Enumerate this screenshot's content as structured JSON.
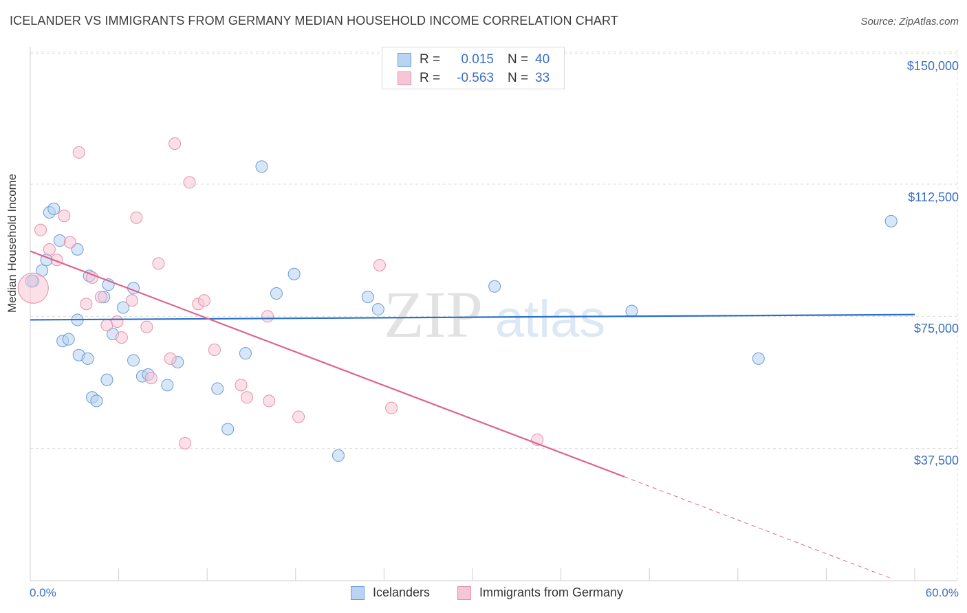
{
  "header": {
    "title": "ICELANDER VS IMMIGRANTS FROM GERMANY MEDIAN HOUSEHOLD INCOME CORRELATION CHART",
    "source": "Source: ZipAtlas.com"
  },
  "colors": {
    "blue_fill": "#b8d3f3",
    "blue_stroke": "#6b9bd8",
    "blue_line": "#2a6fcb",
    "pink_fill": "#f7c6d5",
    "pink_stroke": "#e690ab",
    "pink_line": "#e0628e",
    "grid": "#dcdcdc",
    "tick_label": "#3a6fc4"
  },
  "stats_legend": {
    "rows": [
      {
        "r_label": "R =",
        "r_value": "0.015",
        "n_label": "N =",
        "n_value": "40"
      },
      {
        "r_label": "R =",
        "r_value": "-0.563",
        "n_label": "N =",
        "n_value": "33"
      }
    ]
  },
  "watermark": {
    "zip": "ZIP",
    "atlas": "atlas"
  },
  "chart_data": {
    "type": "scatter",
    "title": "ICELANDER VS IMMIGRANTS FROM GERMANY MEDIAN HOUSEHOLD INCOME CORRELATION CHART",
    "xlabel": "",
    "ylabel": "Median Household Income",
    "xlim": [
      0,
      60
    ],
    "ylim": [
      0,
      155000
    ],
    "x_tick_labels": [
      "0.0%",
      "60.0%"
    ],
    "y_ticks": [
      37500,
      75000,
      112500,
      150000
    ],
    "y_tick_labels": [
      "$37,500",
      "$75,000",
      "$112,500",
      "$150,000"
    ],
    "grid": true,
    "series": [
      {
        "name": "Icelanders",
        "r": 0.015,
        "n": 40,
        "trend": {
          "x0": 0,
          "y0": 74000,
          "x1": 60,
          "y1": 75500
        },
        "points": [
          {
            "x": 0.2,
            "y": 85000
          },
          {
            "x": 0.8,
            "y": 88000
          },
          {
            "x": 1.1,
            "y": 91000
          },
          {
            "x": 1.3,
            "y": 104500
          },
          {
            "x": 1.6,
            "y": 105500
          },
          {
            "x": 2.0,
            "y": 96500
          },
          {
            "x": 2.2,
            "y": 68000
          },
          {
            "x": 2.6,
            "y": 68500
          },
          {
            "x": 3.2,
            "y": 74000
          },
          {
            "x": 3.2,
            "y": 94000
          },
          {
            "x": 3.3,
            "y": 64000
          },
          {
            "x": 3.9,
            "y": 63000
          },
          {
            "x": 4.0,
            "y": 86500
          },
          {
            "x": 4.2,
            "y": 52000
          },
          {
            "x": 4.5,
            "y": 51000
          },
          {
            "x": 5.0,
            "y": 80500
          },
          {
            "x": 5.2,
            "y": 57000
          },
          {
            "x": 5.3,
            "y": 84000
          },
          {
            "x": 5.6,
            "y": 70000
          },
          {
            "x": 6.3,
            "y": 77500
          },
          {
            "x": 7.0,
            "y": 83000
          },
          {
            "x": 7.0,
            "y": 62500
          },
          {
            "x": 7.6,
            "y": 58000
          },
          {
            "x": 8.0,
            "y": 58500
          },
          {
            "x": 9.3,
            "y": 55500
          },
          {
            "x": 10.0,
            "y": 62000
          },
          {
            "x": 12.7,
            "y": 54500
          },
          {
            "x": 13.4,
            "y": 43000
          },
          {
            "x": 14.6,
            "y": 64500
          },
          {
            "x": 15.7,
            "y": 117500
          },
          {
            "x": 16.7,
            "y": 81500
          },
          {
            "x": 17.9,
            "y": 87000
          },
          {
            "x": 20.9,
            "y": 35500
          },
          {
            "x": 22.9,
            "y": 80500
          },
          {
            "x": 23.6,
            "y": 77000
          },
          {
            "x": 31.5,
            "y": 83500
          },
          {
            "x": 40.8,
            "y": 76500
          },
          {
            "x": 49.4,
            "y": 63000
          },
          {
            "x": 58.4,
            "y": 102000
          },
          {
            "x": 0.1,
            "y": 85000
          }
        ]
      },
      {
        "name": "Immigrants from Germany",
        "r": -0.563,
        "n": 33,
        "trend": {
          "x0": 0,
          "y0": 93500,
          "x1": 40.3,
          "y1": 29500
        },
        "trend_dashed": {
          "x0": 40.3,
          "y0": 29500,
          "x1": 58.5,
          "y1": 500
        },
        "points": [
          {
            "x": 0.2,
            "y": 83000
          },
          {
            "x": 0.7,
            "y": 99500
          },
          {
            "x": 1.3,
            "y": 94000
          },
          {
            "x": 1.8,
            "y": 91000
          },
          {
            "x": 2.3,
            "y": 103500
          },
          {
            "x": 2.7,
            "y": 96000
          },
          {
            "x": 3.3,
            "y": 121500
          },
          {
            "x": 3.8,
            "y": 78500
          },
          {
            "x": 4.2,
            "y": 86000
          },
          {
            "x": 4.8,
            "y": 80500
          },
          {
            "x": 5.2,
            "y": 72500
          },
          {
            "x": 5.9,
            "y": 73500
          },
          {
            "x": 6.2,
            "y": 69000
          },
          {
            "x": 6.9,
            "y": 79500
          },
          {
            "x": 7.2,
            "y": 103000
          },
          {
            "x": 7.9,
            "y": 72000
          },
          {
            "x": 8.2,
            "y": 57500
          },
          {
            "x": 8.7,
            "y": 90000
          },
          {
            "x": 9.5,
            "y": 63000
          },
          {
            "x": 9.8,
            "y": 124000
          },
          {
            "x": 10.5,
            "y": 39000
          },
          {
            "x": 10.8,
            "y": 113000
          },
          {
            "x": 11.4,
            "y": 78500
          },
          {
            "x": 11.8,
            "y": 79500
          },
          {
            "x": 12.5,
            "y": 65500
          },
          {
            "x": 14.3,
            "y": 55500
          },
          {
            "x": 14.7,
            "y": 52000
          },
          {
            "x": 16.1,
            "y": 75000
          },
          {
            "x": 16.2,
            "y": 51000
          },
          {
            "x": 18.2,
            "y": 46500
          },
          {
            "x": 23.7,
            "y": 89500
          },
          {
            "x": 24.5,
            "y": 49000
          },
          {
            "x": 34.4,
            "y": 40000
          }
        ]
      }
    ]
  },
  "bottom_legend": [
    {
      "label": "Icelanders"
    },
    {
      "label": "Immigrants from Germany"
    }
  ]
}
